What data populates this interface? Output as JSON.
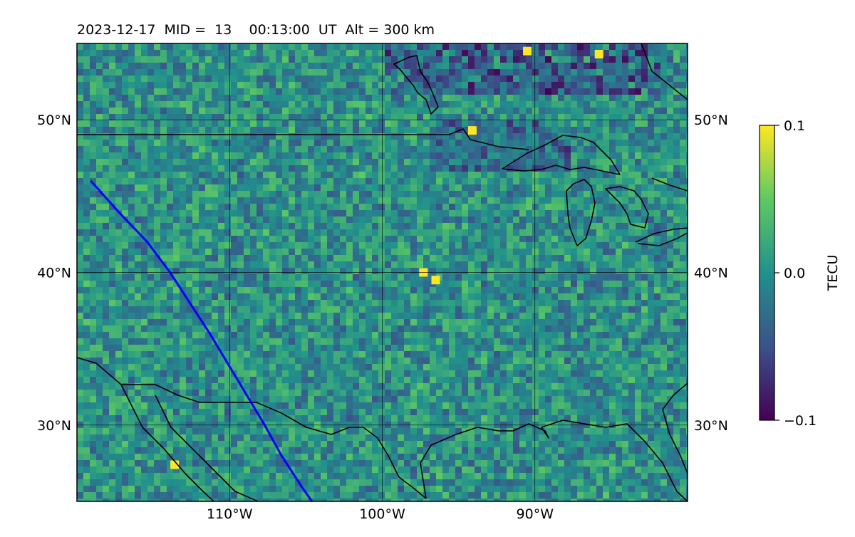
{
  "title": "2023-12-17  MID =  13    00:13:00  UT  Alt = 300 km",
  "chart_data": {
    "type": "heatmap",
    "title": "2023-12-17  MID =  13    00:13:00  UT  Alt = 300 km",
    "projection": "PlateCarree",
    "lon_range": [
      -120,
      -80
    ],
    "lat_range": [
      25,
      55
    ],
    "x_ticks": [
      {
        "value": -110,
        "label": "110°W"
      },
      {
        "value": -100,
        "label": "100°W"
      },
      {
        "value": -90,
        "label": "90°W"
      }
    ],
    "y_ticks": [
      {
        "value": 30,
        "label": "30°N"
      },
      {
        "value": 40,
        "label": "40°N"
      },
      {
        "value": 50,
        "label": "50°N"
      }
    ],
    "grid": true,
    "colorbar": {
      "label": "TECU",
      "vmin": -0.1,
      "vmax": 0.1,
      "ticks": [
        {
          "value": 0.1,
          "label": "0.1"
        },
        {
          "value": 0.0,
          "label": "0.0"
        },
        {
          "value": -0.1,
          "label": "−0.1"
        }
      ],
      "colormap": "viridis",
      "colors": [
        "#440154",
        "#3b528b",
        "#21918c",
        "#5ec962",
        "#fde725"
      ]
    },
    "satellite_track": {
      "color": "#0000ff",
      "points": [
        [
          -119.1,
          46.0
        ],
        [
          -117.3,
          44.0
        ],
        [
          -115.4,
          42.0
        ],
        [
          -113.9,
          40.0
        ],
        [
          -112.6,
          38.0
        ],
        [
          -111.3,
          36.0
        ],
        [
          -110.1,
          34.0
        ],
        [
          -108.9,
          32.0
        ],
        [
          -107.7,
          30.0
        ],
        [
          -106.6,
          28.0
        ],
        [
          -105.3,
          26.0
        ],
        [
          -104.6,
          25.0
        ]
      ]
    },
    "highlights": [
      {
        "lon": -94.1,
        "lat": 49.3,
        "value": 0.1
      },
      {
        "lon": -97.3,
        "lat": 40.0,
        "value": 0.1
      },
      {
        "lon": -96.5,
        "lat": 39.5,
        "value": 0.1
      },
      {
        "lon": -113.6,
        "lat": 27.4,
        "value": 0.1
      },
      {
        "lon": -90.5,
        "lat": 54.5,
        "value": 0.1
      },
      {
        "lon": -85.8,
        "lat": 54.3,
        "value": 0.1
      }
    ],
    "pattern_seed": 1217
  }
}
